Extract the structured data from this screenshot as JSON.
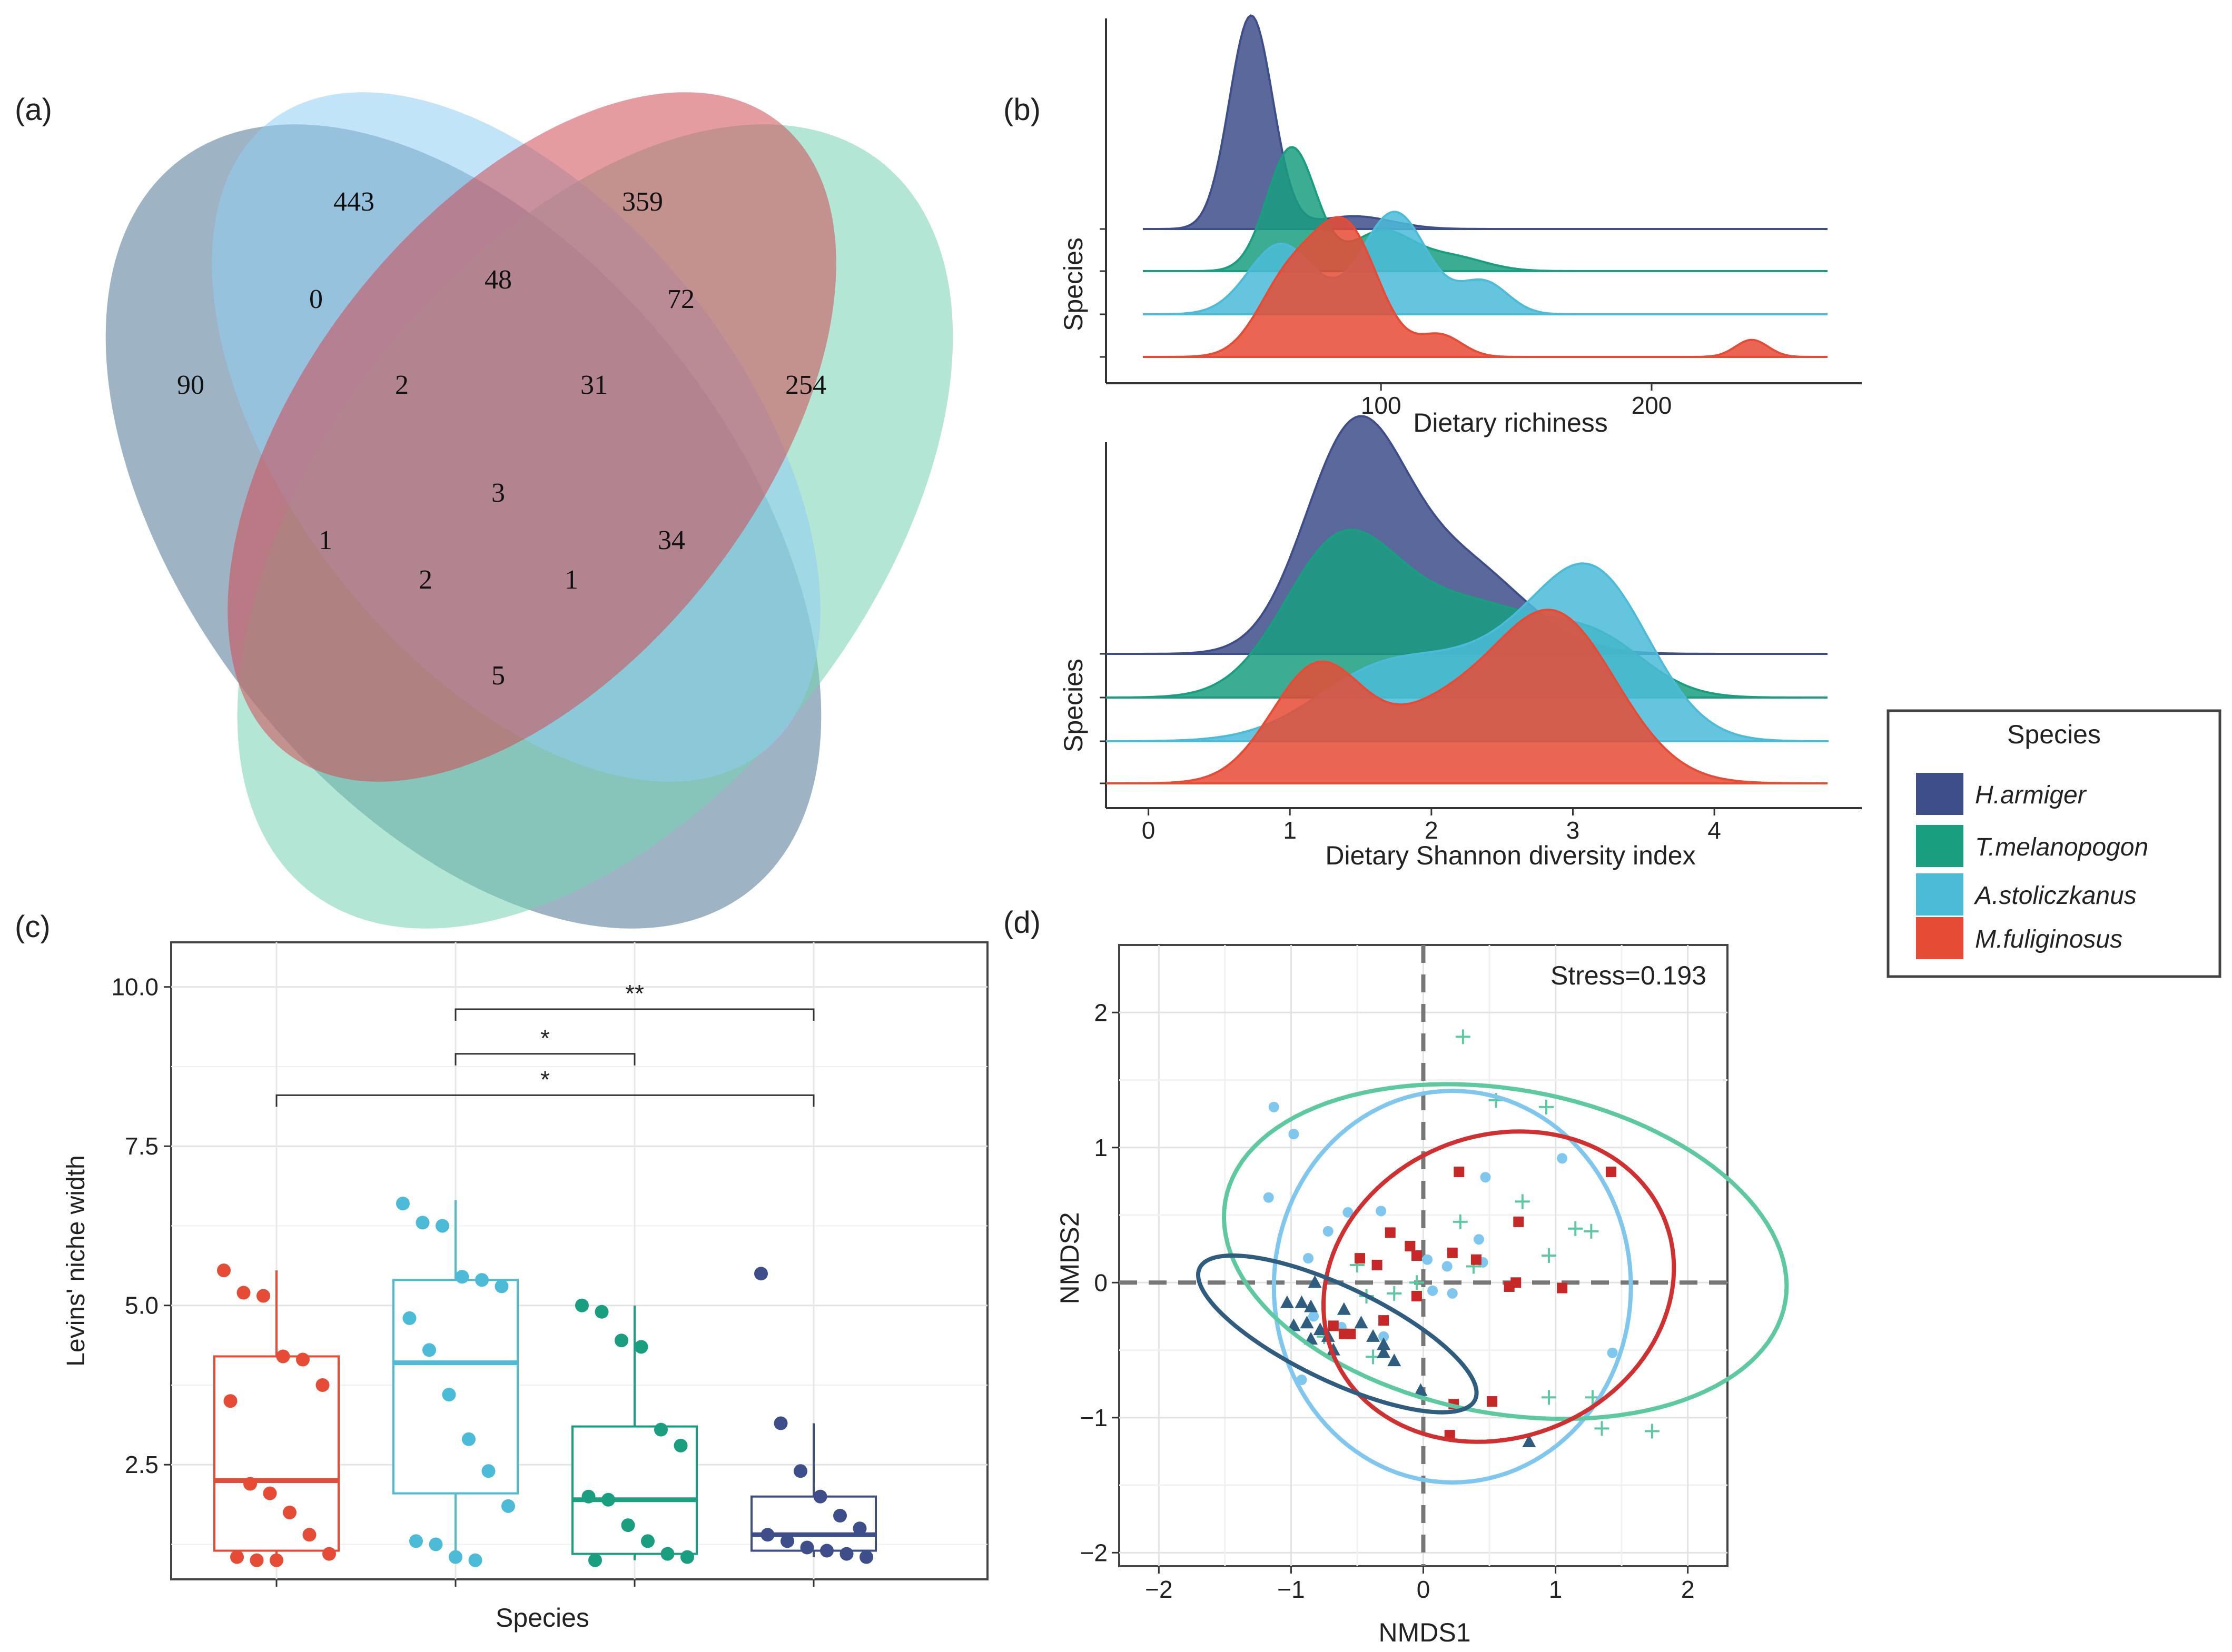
{
  "panels": {
    "a": "(a)",
    "b": "(b)",
    "c": "(c)",
    "d": "(d)"
  },
  "colors": {
    "H.armiger": "#3d4e8a",
    "T.melanopogon": "#1a9e80",
    "A.stoliczkanus": "#4bbbd8",
    "M.fuliginosus": "#e64b35"
  },
  "legend": {
    "title": "Species",
    "items": [
      {
        "name": "H.armiger",
        "color": "#3d4e8a"
      },
      {
        "name": "T.melanopogon",
        "color": "#1a9e80"
      },
      {
        "name": "A.stoliczkanus",
        "color": "#4bbbd8"
      },
      {
        "name": "M.fuliginosus",
        "color": "#e64b35"
      }
    ]
  },
  "chart_data": [
    {
      "type": "venn",
      "panel": "(a)",
      "region_counts": [
        "443",
        "359",
        "90",
        "254",
        "0",
        "48",
        "72",
        "2",
        "31",
        "3",
        "1",
        "2",
        "1",
        "34",
        "5"
      ]
    },
    {
      "type": "area",
      "panel": "(b) top",
      "ylabel": "Species",
      "xlabel": "Dietary richiness",
      "xlim": [
        12,
        265
      ],
      "xticks": [
        "100",
        "200"
      ],
      "xtick_values": [
        100,
        200
      ],
      "series": [
        {
          "name": "H.armiger",
          "peaks": [
            [
              52,
              8,
              1.0
            ],
            [
              90,
              14,
              0.06
            ]
          ]
        },
        {
          "name": "T.melanopogon",
          "peaks": [
            [
              67,
              9,
              0.58
            ],
            [
              100,
              11,
              0.18
            ],
            [
              125,
              13,
              0.07
            ]
          ]
        },
        {
          "name": "A.stoliczkanus",
          "peaks": [
            [
              63,
              12,
              0.33
            ],
            [
              105,
              12,
              0.48
            ],
            [
              138,
              9,
              0.15
            ]
          ]
        },
        {
          "name": "M.fuliginosus",
          "peaks": [
            [
              65,
              11,
              0.33
            ],
            [
              87,
              12,
              0.6
            ],
            [
              122,
              8,
              0.1
            ],
            [
              237,
              6,
              0.08
            ]
          ]
        }
      ]
    },
    {
      "type": "area",
      "panel": "(b) bottom",
      "ylabel": "Species",
      "xlabel": "Dietary Shannon diversity index",
      "xlim": [
        -0.3,
        4.8
      ],
      "xticks": [
        "0",
        "1",
        "2",
        "3",
        "4"
      ],
      "xtick_values": [
        0,
        1,
        2,
        3,
        4
      ],
      "series": [
        {
          "name": "H.armiger",
          "peaks": [
            [
              1.45,
              0.35,
              1.0
            ],
            [
              2.2,
              0.45,
              0.42
            ]
          ]
        },
        {
          "name": "T.melanopogon",
          "peaks": [
            [
              1.35,
              0.4,
              0.68
            ],
            [
              2.3,
              0.55,
              0.42
            ],
            [
              3.2,
              0.35,
              0.2
            ]
          ]
        },
        {
          "name": "A.stoliczkanus",
          "peaks": [
            [
              1.7,
              0.5,
              0.35
            ],
            [
              3.15,
              0.4,
              0.75
            ],
            [
              2.5,
              0.4,
              0.25
            ]
          ]
        },
        {
          "name": "M.fuliginosus",
          "peaks": [
            [
              1.2,
              0.33,
              0.55
            ],
            [
              2.85,
              0.45,
              0.8
            ],
            [
              2.0,
              0.35,
              0.25
            ]
          ]
        }
      ]
    },
    {
      "type": "box",
      "panel": "(c)",
      "xlabel": "Species",
      "ylabel": "Levins' niche width",
      "ylim": [
        0.7,
        10.7
      ],
      "yticks": [
        "2.5",
        "5.0",
        "7.5",
        "10.0"
      ],
      "ytick_values": [
        2.5,
        5.0,
        7.5,
        10.0
      ],
      "groups": [
        {
          "name": "M.fuliginosus",
          "q1": 1.15,
          "median": 2.25,
          "q3": 4.2,
          "whisker_low": 1.0,
          "whisker_high": 5.55,
          "points": [
            5.55,
            5.2,
            5.15,
            4.2,
            4.15,
            3.75,
            3.5,
            2.2,
            2.05,
            1.75,
            1.4,
            1.1,
            1.05,
            1.0,
            1.0
          ]
        },
        {
          "name": "A.stoliczkanus",
          "q1": 2.05,
          "median": 4.1,
          "q3": 5.4,
          "whisker_low": 1.0,
          "whisker_high": 6.65,
          "points": [
            6.6,
            6.3,
            6.25,
            5.45,
            5.4,
            5.3,
            4.8,
            4.3,
            3.6,
            2.9,
            2.4,
            1.85,
            1.3,
            1.25,
            1.05,
            1.0
          ]
        },
        {
          "name": "T.melanopogon",
          "q1": 1.1,
          "median": 1.95,
          "q3": 3.1,
          "whisker_low": 1.0,
          "whisker_high": 5.0,
          "points": [
            5.0,
            4.9,
            4.45,
            4.35,
            3.05,
            2.8,
            2.0,
            1.95,
            1.55,
            1.3,
            1.1,
            1.05,
            1.0
          ]
        },
        {
          "name": "H.armiger",
          "q1": 1.15,
          "median": 1.4,
          "q3": 2.0,
          "whisker_low": 1.05,
          "whisker_high": 3.15,
          "points": [
            5.5,
            3.15,
            2.4,
            2.0,
            1.7,
            1.5,
            1.4,
            1.3,
            1.2,
            1.15,
            1.1,
            1.05
          ]
        }
      ],
      "brackets": [
        {
          "from": 1,
          "to": 3,
          "y": 9.65,
          "label": "**"
        },
        {
          "from": 1,
          "to": 2,
          "y": 8.95,
          "label": "*"
        },
        {
          "from": 0,
          "to": 3,
          "y": 8.3,
          "label": "*"
        }
      ]
    },
    {
      "type": "scatter",
      "panel": "(d)",
      "xlabel": "NMDS1",
      "ylabel": "NMDS2",
      "xlim": [
        -2.3,
        2.3
      ],
      "ylim": [
        -2.1,
        2.5
      ],
      "xticks": [
        "−2",
        "−1",
        "0",
        "1",
        "2"
      ],
      "xtick_values": [
        -2,
        -1,
        0,
        1,
        2
      ],
      "yticks": [
        "−2",
        "−1",
        "0",
        "1",
        "2"
      ],
      "ytick_values": [
        -2,
        -1,
        0,
        1,
        2
      ],
      "annotation": "Stress=0.193",
      "ellipses": [
        {
          "series": "A.stoliczkanus",
          "color": "#7fc7ee",
          "cx": 0.22,
          "cy": -0.03,
          "rx": 1.35,
          "ry": 1.45,
          "angle": 0
        },
        {
          "series": "T.melanopogon",
          "color": "#5cc9a0",
          "cx": 0.62,
          "cy": 0.23,
          "rx": 1.2,
          "ry": 2.15,
          "angle": 80
        },
        {
          "series": "M.fuliginosus",
          "color": "#d03030",
          "cx": 0.57,
          "cy": -0.03,
          "rx": 1.35,
          "ry": 1.12,
          "angle": 20
        },
        {
          "series": "H.armiger",
          "color": "#2e5d80",
          "cx": -0.65,
          "cy": -0.38,
          "rx": 1.15,
          "ry": 0.35,
          "angle": -25
        }
      ],
      "series": [
        {
          "name": "A.stoliczkanus",
          "marker": "circle",
          "color": "#7fc7ee",
          "points": [
            [
              -1.13,
              1.3
            ],
            [
              -0.98,
              1.1
            ],
            [
              -1.17,
              0.63
            ],
            [
              -0.87,
              0.18
            ],
            [
              -0.72,
              0.38
            ],
            [
              -0.57,
              0.52
            ],
            [
              -0.32,
              0.53
            ],
            [
              0.03,
              0.17
            ],
            [
              0.18,
              0.12
            ],
            [
              0.42,
              0.32
            ],
            [
              0.45,
              0.15
            ],
            [
              0.47,
              0.78
            ],
            [
              1.05,
              0.92
            ],
            [
              0.22,
              -0.08
            ],
            [
              0.07,
              -0.06
            ],
            [
              -0.83,
              -0.25
            ],
            [
              -0.62,
              -0.33
            ],
            [
              -0.92,
              -0.72
            ],
            [
              1.43,
              -0.52
            ],
            [
              -0.3,
              -0.4
            ]
          ]
        },
        {
          "name": "T.melanopogon",
          "marker": "plus",
          "color": "#5cc9a0",
          "points": [
            [
              0.3,
              1.82
            ],
            [
              0.55,
              1.35
            ],
            [
              0.93,
              1.3
            ],
            [
              0.28,
              0.45
            ],
            [
              0.75,
              0.6
            ],
            [
              1.15,
              0.4
            ],
            [
              1.27,
              0.38
            ],
            [
              0.95,
              0.2
            ],
            [
              0.38,
              0.12
            ],
            [
              -0.5,
              0.13
            ],
            [
              -0.43,
              -0.1
            ],
            [
              -0.22,
              -0.08
            ],
            [
              -0.05,
              0.0
            ],
            [
              -0.38,
              -0.55
            ],
            [
              -0.75,
              -0.4
            ],
            [
              0.95,
              -0.85
            ],
            [
              1.28,
              -0.85
            ],
            [
              1.35,
              -1.08
            ],
            [
              1.73,
              -1.1
            ]
          ]
        },
        {
          "name": "M.fuliginosus",
          "marker": "square",
          "color": "#c62828",
          "points": [
            [
              0.27,
              0.82
            ],
            [
              1.42,
              0.82
            ],
            [
              0.72,
              0.45
            ],
            [
              -0.25,
              0.37
            ],
            [
              -0.1,
              0.27
            ],
            [
              -0.05,
              0.2
            ],
            [
              -0.48,
              0.18
            ],
            [
              -0.35,
              0.13
            ],
            [
              0.22,
              0.22
            ],
            [
              0.4,
              0.17
            ],
            [
              0.65,
              -0.03
            ],
            [
              1.05,
              -0.04
            ],
            [
              -0.05,
              -0.1
            ],
            [
              -0.6,
              -0.38
            ],
            [
              -0.68,
              -0.32
            ],
            [
              -0.3,
              -0.28
            ],
            [
              -0.55,
              -0.38
            ],
            [
              0.23,
              -0.9
            ],
            [
              0.52,
              -0.88
            ],
            [
              0.7,
              0.0
            ],
            [
              0.2,
              -1.13
            ]
          ]
        },
        {
          "name": "H.armiger",
          "marker": "triangle",
          "color": "#2e5d80",
          "points": [
            [
              -1.03,
              -0.15
            ],
            [
              -0.92,
              -0.15
            ],
            [
              -0.85,
              -0.18
            ],
            [
              -0.82,
              -0.0
            ],
            [
              -0.98,
              -0.32
            ],
            [
              -0.88,
              -0.3
            ],
            [
              -0.85,
              -0.42
            ],
            [
              -0.78,
              -0.35
            ],
            [
              -0.72,
              -0.4
            ],
            [
              -0.68,
              -0.5
            ],
            [
              -0.47,
              -0.3
            ],
            [
              -0.38,
              -0.4
            ],
            [
              -0.3,
              -0.46
            ],
            [
              -0.22,
              -0.58
            ],
            [
              -0.3,
              -0.52
            ],
            [
              -0.02,
              -0.8
            ],
            [
              0.8,
              -1.18
            ],
            [
              -0.6,
              -0.2
            ]
          ]
        }
      ]
    }
  ]
}
